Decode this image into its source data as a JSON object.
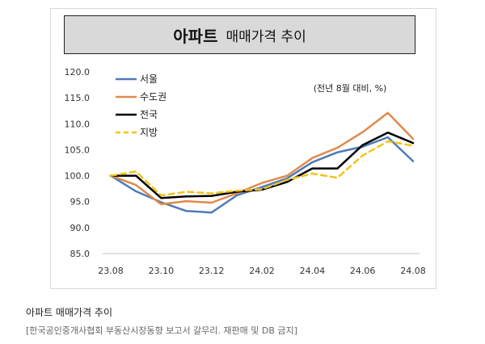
{
  "chart_data": {
    "type": "line",
    "title": "아파트 매매가격 추이",
    "title_main": "아파트",
    "title_rest": "매매가격 추이",
    "unit_note": "(전년 8월 대비, %)",
    "x": [
      "23.08",
      "23.09",
      "23.10",
      "23.11",
      "23.12",
      "24.01",
      "24.02",
      "24.03",
      "24.04",
      "24.05",
      "24.06",
      "24.07",
      "24.08"
    ],
    "xticks": [
      "23.08",
      "23.10",
      "23.12",
      "24.02",
      "24.04",
      "24.06",
      "24.08"
    ],
    "yticks": [
      "85.0",
      "90.0",
      "95.0",
      "100.0",
      "105.0",
      "110.0",
      "115.0",
      "120.0"
    ],
    "ylim": [
      85,
      120
    ],
    "grid": false,
    "legend_position": "top-left",
    "series": [
      {
        "name": "서울",
        "color": "#4f7ab8",
        "style": "solid",
        "values": [
          100.0,
          97.0,
          94.9,
          93.2,
          92.9,
          96.2,
          97.8,
          99.5,
          102.6,
          104.5,
          105.6,
          107.4,
          102.8
        ]
      },
      {
        "name": "수도권",
        "color": "#e08a4a",
        "style": "solid",
        "values": [
          100.0,
          98.2,
          94.5,
          95.1,
          94.8,
          96.6,
          98.6,
          100.0,
          103.4,
          105.4,
          108.4,
          112.1,
          107.1
        ]
      },
      {
        "name": "전국",
        "color": "#000000",
        "style": "solid",
        "values": [
          100.0,
          100.0,
          95.7,
          96.0,
          96.1,
          96.9,
          97.3,
          98.8,
          101.4,
          101.4,
          105.9,
          108.3,
          106.3
        ]
      },
      {
        "name": "지방",
        "color": "#f0c419",
        "style": "dashed",
        "values": [
          100.0,
          100.8,
          96.2,
          96.9,
          96.6,
          97.1,
          97.4,
          99.2,
          100.4,
          99.6,
          103.9,
          106.6,
          105.8
        ]
      }
    ]
  },
  "caption": "아파트 매매가격 추이",
  "source": "[한국공인중개사협회 부동산시장동향 보고서 갈무리. 재판매 및 DB 금지]"
}
